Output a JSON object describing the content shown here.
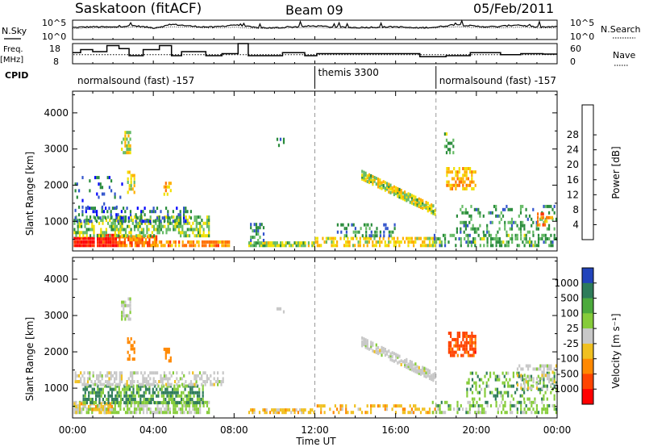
{
  "header": {
    "station": "Saskatoon (fitACF)",
    "beam": "Beam 09",
    "date": "05/Feb/2011"
  },
  "noise_panel": {
    "left_label": "N.Sky",
    "right_label": "N.Search",
    "left_ticks": [
      "10^5",
      "10^0"
    ],
    "right_ticks": [
      "10^5",
      "10^0"
    ]
  },
  "freq_panel": {
    "left_label_line1": "Freq.",
    "left_label_line2": "[MHz]",
    "right_label": "Nave",
    "left_ticks": [
      "18",
      "8"
    ],
    "right_ticks": [
      "60",
      "0"
    ]
  },
  "cpid": {
    "label": "CPID",
    "segments": [
      "normalsound (fast) -157",
      "themis 3300",
      "normalsound (fast) -157"
    ],
    "boundaries_hours": [
      0,
      12,
      18,
      24
    ]
  },
  "time_axis": {
    "label": "Time UT",
    "ticks": [
      "00:00",
      "04:00",
      "08:00",
      "12:00",
      "16:00",
      "20:00",
      "00:00"
    ]
  },
  "power_panel": {
    "ylabel": "Slant Range [km]",
    "yticks": [
      "1000",
      "2000",
      "3000",
      "4000"
    ],
    "colorbar_label": "Power [dB]",
    "colorbar_ticks": [
      "4",
      "8",
      "12",
      "16",
      "20",
      "24",
      "28"
    ],
    "colors": [
      "#0000ff",
      "#3355cc",
      "#2a8c3c",
      "#66bb66",
      "#f0e000",
      "#ffb000",
      "#ff7000",
      "#ff3300",
      "#ff0000"
    ]
  },
  "velocity_panel": {
    "ylabel": "Slant Range [km]",
    "yticks": [
      "1000",
      "2000",
      "3000",
      "4000"
    ],
    "colorbar_label": "Velocity [m s⁻¹]",
    "colorbar_ticks": [
      "1000",
      "500",
      "100",
      "25",
      "-25",
      "-100",
      "-500",
      "-1000"
    ],
    "colors": [
      "#2244bb",
      "#2e7c5a",
      "#4caa3c",
      "#86cc3a",
      "#c8c8c8",
      "#f0c020",
      "#ff8800",
      "#ff4400",
      "#ff0000"
    ]
  },
  "chart_data": [
    {
      "type": "line",
      "name": "noise",
      "series": [
        {
          "values": [
            3.1,
            3.3,
            3.2,
            3.6,
            3.0,
            3.9,
            3.4,
            3.2,
            3.8,
            3.1,
            3.0,
            3.3,
            3.5,
            3.2,
            3.1,
            3.2,
            3.3,
            3.0,
            3.2,
            3.9,
            3.4,
            3.3,
            3.8,
            3.2,
            3.3
          ]
        },
        {
          "values": [
            2.8,
            3.0,
            3.0,
            3.2,
            2.9,
            3.3,
            3.1,
            3.0,
            3.2,
            2.9,
            2.9,
            3.0,
            3.1,
            3.0,
            2.9,
            3.0,
            3.0,
            2.9,
            3.0,
            3.3,
            3.1,
            3.0,
            3.2,
            3.0,
            3.0
          ]
        }
      ],
      "x": [
        0,
        1,
        2,
        3,
        4,
        5,
        6,
        7,
        8,
        9,
        10,
        11,
        12,
        13,
        14,
        15,
        16,
        17,
        18,
        19,
        20,
        21,
        22,
        23,
        24
      ]
    },
    {
      "type": "line",
      "name": "frequency",
      "xunit": "hours UT",
      "freq_steps": [
        [
          0,
          13.5
        ],
        [
          0.4,
          15
        ],
        [
          1.0,
          14
        ],
        [
          1.7,
          17
        ],
        [
          2.3,
          15.5
        ],
        [
          2.8,
          12
        ],
        [
          3.5,
          15
        ],
        [
          4.3,
          17
        ],
        [
          4.9,
          12
        ],
        [
          5.4,
          14
        ],
        [
          6.6,
          12
        ],
        [
          7.4,
          13
        ],
        [
          8.2,
          18
        ],
        [
          8.7,
          12
        ],
        [
          10.4,
          13.5
        ],
        [
          11.5,
          12
        ],
        [
          12.1,
          13
        ],
        [
          16.1,
          13
        ],
        [
          17.2,
          11.5
        ],
        [
          18.5,
          12
        ],
        [
          19.7,
          13.5
        ],
        [
          21.2,
          12.5
        ],
        [
          22.2,
          13
        ],
        [
          23.3,
          12.8
        ],
        [
          24,
          12.8
        ]
      ],
      "nave_level": 27,
      "ylim_freq": [
        8,
        18
      ],
      "ylim_nave": [
        0,
        60
      ]
    },
    {
      "type": "heatmap",
      "name": "power",
      "xunit": "hours UT",
      "yunit": "km",
      "xlim": [
        0,
        24
      ],
      "ylim": [
        180,
        4600
      ],
      "zlim": [
        0,
        30
      ],
      "blobs": [
        {
          "t": [
            0.05,
            1.1
          ],
          "r": [
            330,
            620
          ],
          "p": 27,
          "d": 0.98
        },
        {
          "t": [
            1.2,
            2.2
          ],
          "r": [
            330,
            700
          ],
          "p": 27,
          "d": 0.98
        },
        {
          "t": [
            2.2,
            4.2
          ],
          "r": [
            330,
            650
          ],
          "p": 22,
          "d": 0.85
        },
        {
          "t": [
            0.05,
            6.8
          ],
          "r": [
            600,
            1200
          ],
          "p": 12,
          "d": 0.55
        },
        {
          "t": [
            0.1,
            6.0
          ],
          "r": [
            1000,
            1450
          ],
          "p": 6,
          "d": 0.35
        },
        {
          "t": [
            4.0,
            7.8
          ],
          "r": [
            330,
            520
          ],
          "p": 20,
          "d": 0.8
        },
        {
          "t": [
            0.1,
            2.5
          ],
          "r": [
            1300,
            2300
          ],
          "p": 6,
          "d": 0.12
        },
        {
          "t": [
            2.4,
            2.9
          ],
          "r": [
            2900,
            3550
          ],
          "p": 14,
          "d": 0.55
        },
        {
          "t": [
            2.7,
            3.1
          ],
          "r": [
            1800,
            2450
          ],
          "p": 16,
          "d": 0.6
        },
        {
          "t": [
            4.5,
            4.9
          ],
          "r": [
            1750,
            2150
          ],
          "p": 18,
          "d": 0.5
        },
        {
          "t": [
            8.7,
            12.0
          ],
          "r": [
            330,
            470
          ],
          "p": 13,
          "d": 0.8
        },
        {
          "t": [
            8.7,
            9.6
          ],
          "r": [
            470,
            1000
          ],
          "p": 8,
          "d": 0.4
        },
        {
          "t": [
            12.0,
            18.0
          ],
          "r": [
            330,
            620
          ],
          "p": 16,
          "d": 0.55
        },
        {
          "t": [
            13.0,
            16.0
          ],
          "r": [
            600,
            1000
          ],
          "p": 8,
          "d": 0.3
        },
        {
          "t": [
            17.8,
            24.0
          ],
          "r": [
            330,
            700
          ],
          "p": 10,
          "d": 0.45
        },
        {
          "t": [
            19.0,
            24.0
          ],
          "r": [
            700,
            1500
          ],
          "p": 9,
          "d": 0.25
        },
        {
          "t": [
            18.5,
            20.0
          ],
          "r": [
            1900,
            2550
          ],
          "p": 18,
          "d": 0.6
        },
        {
          "t": [
            18.4,
            18.9
          ],
          "r": [
            2900,
            3500
          ],
          "p": 10,
          "d": 0.4
        },
        {
          "t": [
            23.0,
            23.8
          ],
          "r": [
            900,
            1300
          ],
          "p": 20,
          "d": 0.5
        },
        {
          "t": [
            10.1,
            10.5
          ],
          "r": [
            3100,
            3350
          ],
          "p": 6,
          "d": 0.5
        }
      ],
      "band": {
        "t": [
          14.3,
          18.0
        ],
        "r_start": 2300,
        "r_end": 1300,
        "width": 260,
        "p": 14,
        "d": 0.7
      }
    },
    {
      "type": "heatmap",
      "name": "velocity",
      "xunit": "hours UT",
      "yunit": "km",
      "xlim": [
        0,
        24
      ],
      "ylim": [
        180,
        4600
      ],
      "zlim": [
        -1000,
        1000
      ],
      "blobs": [
        {
          "t": [
            0.05,
            6.8
          ],
          "r": [
            330,
            700
          ],
          "v": 40,
          "d": 0.7
        },
        {
          "t": [
            0.05,
            2.0
          ],
          "r": [
            330,
            650
          ],
          "v": -60,
          "d": 0.4
        },
        {
          "t": [
            0.5,
            6.5
          ],
          "r": [
            600,
            1150
          ],
          "v": 120,
          "d": 0.65
        },
        {
          "t": [
            0.1,
            7.5
          ],
          "r": [
            1100,
            1500
          ],
          "v": 0,
          "d": 0.5
        },
        {
          "t": [
            2.4,
            2.9
          ],
          "r": [
            2900,
            3550
          ],
          "v": 10,
          "d": 0.5
        },
        {
          "t": [
            2.7,
            3.1
          ],
          "r": [
            1800,
            2450
          ],
          "v": -300,
          "d": 0.55
        },
        {
          "t": [
            4.5,
            4.9
          ],
          "r": [
            1750,
            2150
          ],
          "v": -200,
          "d": 0.5
        },
        {
          "t": [
            8.7,
            12.0
          ],
          "r": [
            330,
            470
          ],
          "v": -60,
          "d": 0.6
        },
        {
          "t": [
            12.0,
            18.0
          ],
          "r": [
            330,
            600
          ],
          "v": -80,
          "d": 0.4
        },
        {
          "t": [
            17.8,
            24.0
          ],
          "r": [
            330,
            700
          ],
          "v": 60,
          "d": 0.4
        },
        {
          "t": [
            19.5,
            24.0
          ],
          "r": [
            700,
            1500
          ],
          "v": 80,
          "d": 0.3
        },
        {
          "t": [
            18.6,
            20.0
          ],
          "r": [
            1900,
            2600
          ],
          "v": -700,
          "d": 0.7
        },
        {
          "t": [
            22.0,
            24.0
          ],
          "r": [
            1000,
            1700
          ],
          "v": 0,
          "d": 0.35
        },
        {
          "t": [
            10.1,
            10.5
          ],
          "r": [
            3100,
            3350
          ],
          "v": 0,
          "d": 0.5
        }
      ],
      "band": {
        "t": [
          14.3,
          18.0
        ],
        "r_start": 2300,
        "r_end": 1300,
        "width": 260,
        "v": 0,
        "d": 0.6
      }
    }
  ]
}
